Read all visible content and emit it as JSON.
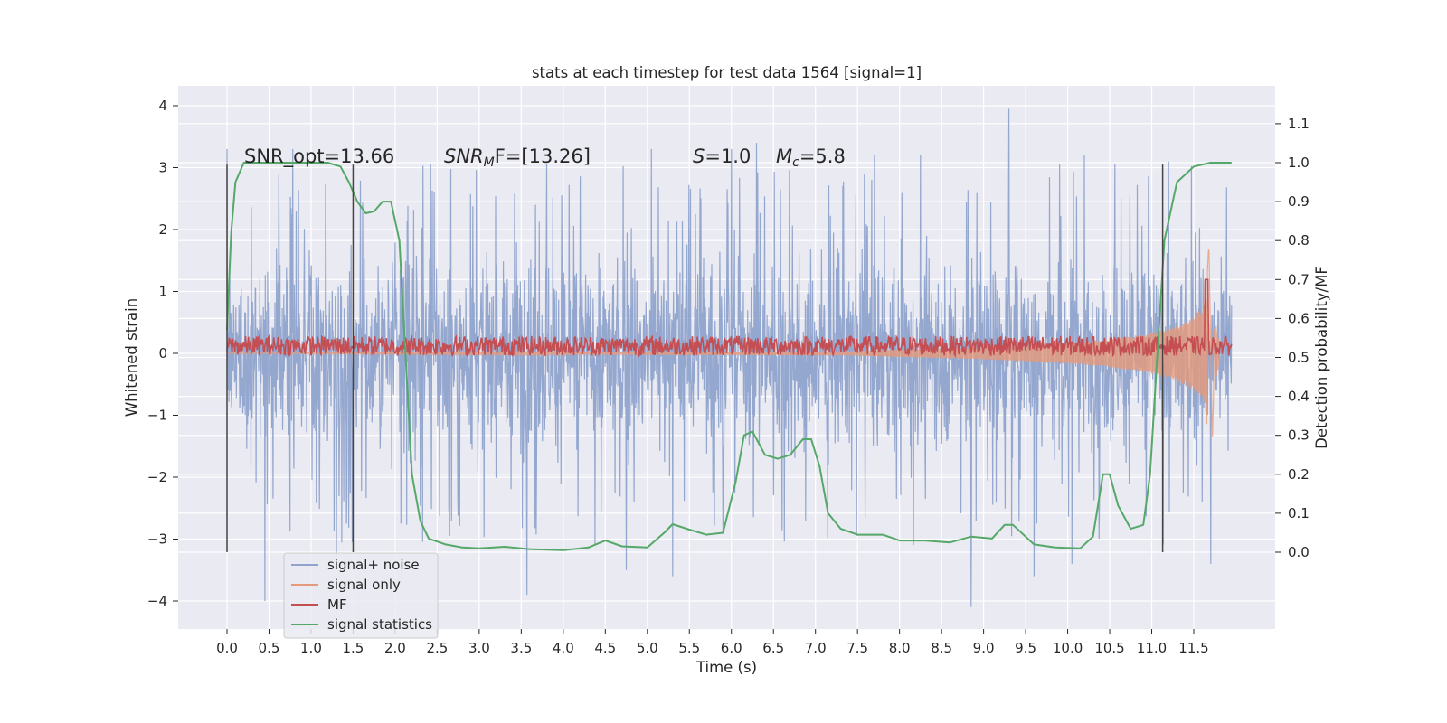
{
  "chart_data": {
    "type": "line",
    "title": "stats at each timestep for test data 1564 [signal=1]",
    "xlabel": "Time (s)",
    "ylabel_left": "Whitened strain",
    "ylabel_right": "Detection probability/MF",
    "xlim": [
      -0.5,
      12.65
    ],
    "ylim_left": [
      -4.5,
      4.35
    ],
    "ylim_right": [
      -0.2,
      1.2
    ],
    "x_ticks": [
      0.0,
      0.5,
      1.0,
      1.5,
      2.0,
      2.5,
      3.0,
      3.5,
      4.0,
      4.5,
      5.0,
      5.5,
      6.0,
      6.5,
      7.0,
      7.5,
      8.0,
      8.5,
      9.0,
      9.5,
      10.0,
      10.5,
      11.0,
      11.5
    ],
    "x_tick_labels": [
      "0.0",
      "0.5",
      "1.0",
      "1.5",
      "2.0",
      "2.5",
      "3.0",
      "3.5",
      "4.0",
      "4.5",
      "5.0",
      "5.5",
      "6.0",
      "6.5",
      "7.0",
      "7.5",
      "8.0",
      "8.5",
      "9.0",
      "9.5",
      "10.0",
      "10.5",
      "11.0",
      "11.5"
    ],
    "left_ticks": [
      -4,
      -3,
      -2,
      -1,
      0,
      1,
      2,
      3,
      4
    ],
    "left_tick_labels": [
      "−4",
      "−3",
      "−2",
      "−1",
      "0",
      "1",
      "2",
      "3",
      "4"
    ],
    "right_ticks": [
      0.0,
      0.1,
      0.2,
      0.3,
      0.4,
      0.5,
      0.6,
      0.7,
      0.8,
      0.9,
      1.0,
      1.1
    ],
    "right_tick_labels": [
      "0.0",
      "0.1",
      "0.2",
      "0.3",
      "0.4",
      "0.5",
      "0.6",
      "0.7",
      "0.8",
      "0.9",
      "1.0",
      "1.1"
    ],
    "grid": true,
    "legend_position": "lower-left",
    "vlines_x": [
      0.0,
      1.5,
      11.13
    ],
    "annotations": {
      "snr_opt": "SNR_opt=13.66",
      "snr_mf_main": "SNR",
      "snr_mf_sub": "M",
      "snr_mf_tail": "F=[13.26]",
      "s_var": "S",
      "s_val": "=1.0",
      "mc_var": "M",
      "mc_sub": "c",
      "mc_val": "=5.8"
    },
    "series": [
      {
        "name": "signal+ noise",
        "axis": "left",
        "color": "#8fa3cc",
        "x_range": [
          0.0,
          11.95
        ],
        "envelope_note": "dense noise trace, bulk ~[-1.8, 1.8], spikes to ~±3.5",
        "spikes": [
          [
            0.0,
            3.3
          ],
          [
            0.0,
            -2.2
          ],
          [
            0.45,
            -4.0
          ],
          [
            1.3,
            -3.3
          ],
          [
            4.75,
            -3.5
          ],
          [
            5.3,
            -3.6
          ],
          [
            6.0,
            3.3
          ],
          [
            6.3,
            3.4
          ],
          [
            8.25,
            3.2
          ],
          [
            8.85,
            -4.1
          ],
          [
            9.3,
            3.95
          ],
          [
            9.6,
            -3.6
          ],
          [
            11.2,
            3.1
          ],
          [
            11.7,
            -3.4
          ],
          [
            0.78,
            3.3
          ],
          [
            3.57,
            -3.9
          ],
          [
            5.05,
            3.3
          ],
          [
            7.7,
            3.2
          ],
          [
            10.05,
            -3.4
          ],
          [
            10.2,
            3.2
          ]
        ]
      },
      {
        "name": "signal only",
        "axis": "left",
        "color": "#e59a7a",
        "points": [
          [
            7.5,
            0.04
          ],
          [
            8.0,
            0.06
          ],
          [
            8.5,
            0.08
          ],
          [
            9.0,
            0.1
          ],
          [
            9.5,
            0.13
          ],
          [
            10.0,
            0.17
          ],
          [
            10.5,
            0.23
          ],
          [
            11.0,
            0.33
          ],
          [
            11.3,
            0.45
          ],
          [
            11.5,
            0.6
          ],
          [
            11.6,
            0.75
          ],
          [
            11.65,
            1.0
          ],
          [
            11.68,
            1.8
          ],
          [
            11.72,
            -1.4
          ],
          [
            11.76,
            0.5
          ],
          [
            11.8,
            0.2
          ]
        ]
      },
      {
        "name": "MF",
        "axis": "right",
        "color": "#c44e52",
        "baseline": 0.53,
        "band": [
          0.505,
          0.555
        ],
        "peak": [
          11.65,
          0.7
        ]
      },
      {
        "name": "signal statistics",
        "axis": "right",
        "color": "#55a868",
        "points": [
          [
            0.0,
            0.57
          ],
          [
            0.05,
            0.82
          ],
          [
            0.1,
            0.95
          ],
          [
            0.2,
            1.0
          ],
          [
            0.4,
            1.0
          ],
          [
            0.8,
            1.0
          ],
          [
            1.2,
            1.0
          ],
          [
            1.35,
            0.99
          ],
          [
            1.45,
            0.95
          ],
          [
            1.55,
            0.9
          ],
          [
            1.65,
            0.87
          ],
          [
            1.75,
            0.875
          ],
          [
            1.85,
            0.9
          ],
          [
            1.95,
            0.9
          ],
          [
            2.05,
            0.8
          ],
          [
            2.1,
            0.6
          ],
          [
            2.15,
            0.4
          ],
          [
            2.2,
            0.2
          ],
          [
            2.3,
            0.08
          ],
          [
            2.4,
            0.035
          ],
          [
            2.6,
            0.02
          ],
          [
            2.8,
            0.012
          ],
          [
            3.0,
            0.01
          ],
          [
            3.3,
            0.014
          ],
          [
            3.6,
            0.008
          ],
          [
            4.0,
            0.005
          ],
          [
            4.3,
            0.012
          ],
          [
            4.5,
            0.03
          ],
          [
            4.7,
            0.015
          ],
          [
            5.0,
            0.012
          ],
          [
            5.2,
            0.05
          ],
          [
            5.3,
            0.072
          ],
          [
            5.5,
            0.058
          ],
          [
            5.7,
            0.045
          ],
          [
            5.9,
            0.05
          ],
          [
            6.05,
            0.18
          ],
          [
            6.15,
            0.3
          ],
          [
            6.25,
            0.31
          ],
          [
            6.4,
            0.25
          ],
          [
            6.55,
            0.24
          ],
          [
            6.7,
            0.25
          ],
          [
            6.85,
            0.29
          ],
          [
            6.95,
            0.29
          ],
          [
            7.05,
            0.22
          ],
          [
            7.15,
            0.1
          ],
          [
            7.3,
            0.06
          ],
          [
            7.5,
            0.045
          ],
          [
            7.8,
            0.045
          ],
          [
            8.0,
            0.03
          ],
          [
            8.3,
            0.03
          ],
          [
            8.6,
            0.025
          ],
          [
            8.85,
            0.04
          ],
          [
            9.1,
            0.035
          ],
          [
            9.25,
            0.07
          ],
          [
            9.35,
            0.07
          ],
          [
            9.6,
            0.02
          ],
          [
            9.85,
            0.012
          ],
          [
            10.15,
            0.01
          ],
          [
            10.3,
            0.04
          ],
          [
            10.42,
            0.2
          ],
          [
            10.5,
            0.2
          ],
          [
            10.6,
            0.12
          ],
          [
            10.75,
            0.06
          ],
          [
            10.9,
            0.07
          ],
          [
            10.98,
            0.2
          ],
          [
            11.05,
            0.45
          ],
          [
            11.15,
            0.8
          ],
          [
            11.3,
            0.95
          ],
          [
            11.5,
            0.99
          ],
          [
            11.7,
            1.0
          ],
          [
            11.95,
            1.0
          ]
        ]
      }
    ]
  }
}
